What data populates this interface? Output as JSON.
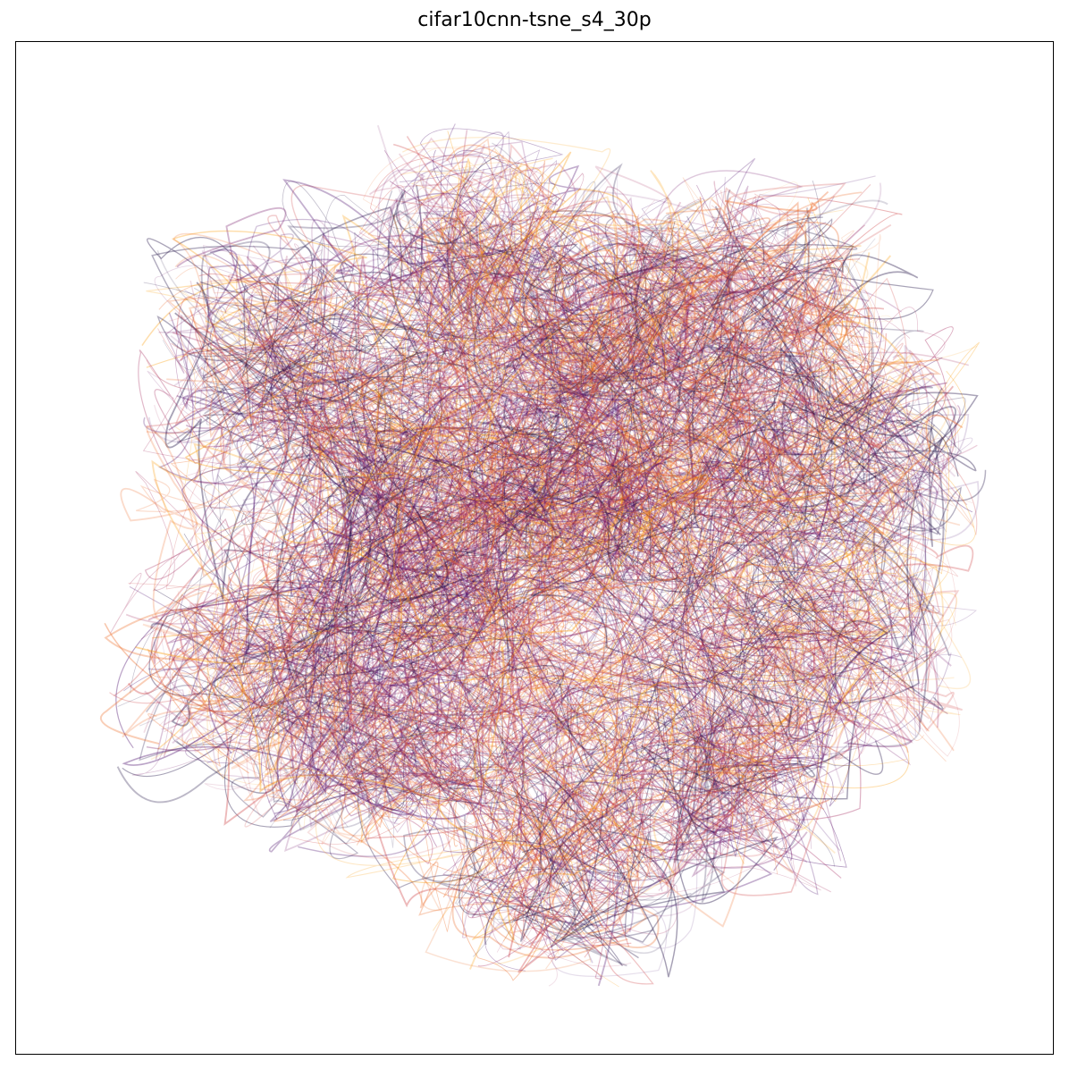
{
  "chart_data": {
    "type": "line",
    "title": "cifar10cnn-tsne_s4_30p",
    "xlabel": "",
    "ylabel": "",
    "x_ticks": "none",
    "y_ticks": "none",
    "grid": false,
    "legend": "none",
    "colormap": "magma",
    "colormap_stops": [
      "#1b0c41",
      "#4a0c6b",
      "#781c6d",
      "#a52c60",
      "#cf4446",
      "#ed6925",
      "#fb9b06",
      "#f7d13d"
    ],
    "line_alpha": 0.22,
    "dense_core_color": "#1b0c41",
    "description_units": "t-SNE embedding coordinates (unitless)",
    "xlim": [
      -1.0,
      1.0
    ],
    "ylim": [
      -1.0,
      1.0
    ],
    "trajectory_centers": [
      {
        "x": -0.62,
        "y": 0.45
      },
      {
        "x": -0.15,
        "y": 0.72
      },
      {
        "x": 0.2,
        "y": 0.55
      },
      {
        "x": 0.55,
        "y": 0.6
      },
      {
        "x": 0.75,
        "y": 0.25
      },
      {
        "x": 0.7,
        "y": -0.25
      },
      {
        "x": 0.45,
        "y": -0.55
      },
      {
        "x": 0.05,
        "y": -0.75
      },
      {
        "x": -0.35,
        "y": -0.45
      },
      {
        "x": -0.7,
        "y": -0.3
      },
      {
        "x": -0.3,
        "y": 0.05
      },
      {
        "x": 0.1,
        "y": 0.1
      }
    ]
  }
}
